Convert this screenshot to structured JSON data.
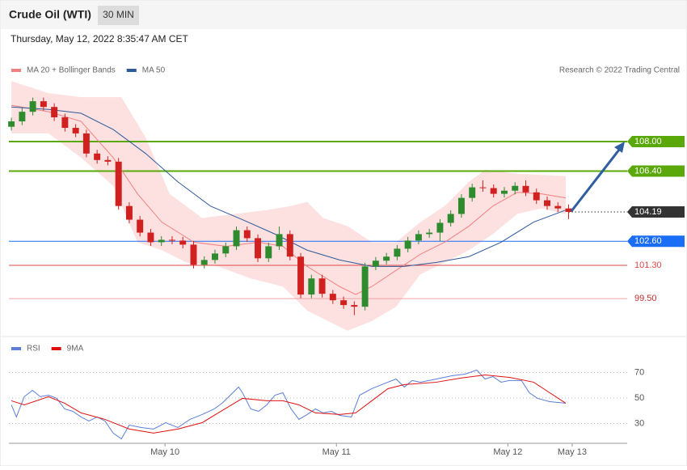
{
  "header": {
    "title": "Crude Oil (WTI)",
    "interval": "30 MIN",
    "timestamp": "Thursday, May 12, 2022 8:35:47 AM CET"
  },
  "chart_data": [
    {
      "type": "candlestick",
      "credit": "Research © 2022 Trading Central",
      "up_color": "#2e8b2e",
      "down_color": "#d02020",
      "xlim": [
        -0.7,
        172.4
      ],
      "ylim": [
        97.74,
        111.5
      ],
      "x": [
        0,
        3,
        6,
        9,
        12,
        15,
        18,
        21,
        24,
        27,
        30,
        33,
        36,
        39,
        42,
        45,
        48,
        51,
        54,
        57,
        60,
        63,
        66,
        69,
        72,
        75,
        78,
        81,
        84,
        87,
        90,
        93,
        96,
        99,
        102,
        105,
        108,
        111,
        114,
        117,
        120,
        123,
        126,
        129,
        132,
        135,
        138,
        141,
        144,
        147,
        150,
        153,
        156
      ],
      "open": [
        108.8,
        109.09,
        109.61,
        110.18,
        109.87,
        109.31,
        108.74,
        108.44,
        107.35,
        107.0,
        106.91,
        104.51,
        103.77,
        103.07,
        102.55,
        102.68,
        102.64,
        102.42,
        101.33,
        101.59,
        101.94,
        102.33,
        103.2,
        102.77,
        101.68,
        102.33,
        102.99,
        101.77,
        99.72,
        100.59,
        99.76,
        99.41,
        99.15,
        99.06,
        101.24,
        101.55,
        101.77,
        102.2,
        102.64,
        102.99,
        103.07,
        103.6,
        104.08,
        104.95,
        105.52,
        105.48,
        105.17,
        105.34,
        105.6,
        105.25,
        104.82,
        104.51,
        104.38
      ],
      "high": [
        109.29,
        109.81,
        110.38,
        110.38,
        110.07,
        109.51,
        108.94,
        108.64,
        107.55,
        107.2,
        107.11,
        104.71,
        103.97,
        103.27,
        102.88,
        102.88,
        102.84,
        102.62,
        101.79,
        102.14,
        102.53,
        103.4,
        103.4,
        102.97,
        102.53,
        103.4,
        103.19,
        101.97,
        100.79,
        100.79,
        99.96,
        99.61,
        99.35,
        101.44,
        101.75,
        101.97,
        102.4,
        102.84,
        103.19,
        103.27,
        103.8,
        104.28,
        105.15,
        105.72,
        105.9,
        105.68,
        105.54,
        105.8,
        105.9,
        105.45,
        105.02,
        104.71,
        104.59
      ],
      "low": [
        108.6,
        108.89,
        109.41,
        109.67,
        109.11,
        108.54,
        108.24,
        107.15,
        106.8,
        106.71,
        104.31,
        103.57,
        102.87,
        102.35,
        102.35,
        102.44,
        102.22,
        101.13,
        101.13,
        101.39,
        101.74,
        102.13,
        102.57,
        101.48,
        101.48,
        102.13,
        101.57,
        99.52,
        99.52,
        99.56,
        99.21,
        98.95,
        98.6,
        98.86,
        101.04,
        101.35,
        101.57,
        102.0,
        102.44,
        102.79,
        102.6,
        103.4,
        103.88,
        104.75,
        105.28,
        104.97,
        104.97,
        105.14,
        105.05,
        104.62,
        104.31,
        104.18,
        103.8
      ],
      "close": [
        109.09,
        109.61,
        110.18,
        109.87,
        109.31,
        108.74,
        108.44,
        107.35,
        107.0,
        106.91,
        104.51,
        103.77,
        103.07,
        102.55,
        102.68,
        102.64,
        102.42,
        101.33,
        101.59,
        101.94,
        102.33,
        103.2,
        102.77,
        101.68,
        102.33,
        102.99,
        101.77,
        99.72,
        100.59,
        99.76,
        99.41,
        99.15,
        99.06,
        101.24,
        101.55,
        101.77,
        102.2,
        102.64,
        102.99,
        103.07,
        103.6,
        104.08,
        104.95,
        105.52,
        105.48,
        105.17,
        105.34,
        105.6,
        105.25,
        104.82,
        104.51,
        104.38,
        104.19
      ],
      "series": [
        {
          "name": "MA 20 + Bollinger Bands",
          "color": "#f08080",
          "x": [
            0,
            10.4,
            19.5,
            28.5,
            35.3,
            42.1,
            51.1,
            60.2,
            69.2,
            76.0,
            82.8,
            91.9,
            96.4,
            100.9,
            107.7,
            114.5,
            121.3,
            128.1,
            134.8,
            141.6,
            148.4,
            155.2
          ],
          "values": [
            109.96,
            109.61,
            109.09,
            107.13,
            105.17,
            103.64,
            102.55,
            102.33,
            102.55,
            102.33,
            101.24,
            100.15,
            99.72,
            100.15,
            101.03,
            101.9,
            102.55,
            103.42,
            104.51,
            105.25,
            105.17,
            104.95
          ],
          "band_color": "#fde1e1",
          "upper": {
            "x": [
              0,
              10.4,
              19.5,
              30.8,
              37.6,
              44.3,
              53.4,
              62.4,
              71.5,
              78.3,
              82.8,
              87.3,
              94.1,
              100.9,
              107.7,
              114.5,
              121.3,
              128.1,
              132.6,
              141.6,
              155.2
            ],
            "values": [
              111.27,
              110.62,
              110.4,
              110.4,
              108.22,
              105.17,
              103.86,
              104.08,
              104.29,
              104.51,
              104.73,
              103.86,
              103.42,
              102.55,
              102.55,
              103.64,
              104.51,
              105.82,
              106.47,
              106.26,
              106.13
            ]
          },
          "lower": {
            "x": [
              0,
              10.4,
              19.5,
              28.5,
              35.3,
              42.1,
              48.9,
              57.9,
              67.0,
              76.0,
              82.8,
              89.6,
              94.1,
              100.9,
              107.7,
              114.5,
              121.3,
              128.1,
              134.8,
              141.6,
              148.4,
              155.2
            ],
            "values": [
              108.44,
              108.44,
              107.13,
              105.6,
              102.55,
              102.12,
              101.46,
              101.24,
              100.59,
              100.15,
              98.85,
              98.19,
              97.76,
              98.28,
              99.06,
              100.81,
              101.46,
              102.12,
              102.99,
              104.08,
              104.38,
              104.08
            ]
          }
        },
        {
          "name": "MA 50",
          "color": "#2e5a9a",
          "x": [
            0,
            10.4,
            19.5,
            28.5,
            37.6,
            46.6,
            55.7,
            64.7,
            73.8,
            82.8,
            91.9,
            100.9,
            110.0,
            119.0,
            128.1,
            137.1,
            146.2,
            155.2
          ],
          "values": [
            109.87,
            109.74,
            109.53,
            108.65,
            107.35,
            105.82,
            104.51,
            103.77,
            102.99,
            102.12,
            101.59,
            101.24,
            101.24,
            101.46,
            101.77,
            102.55,
            103.64,
            104.29
          ]
        }
      ],
      "levels": [
        {
          "value": 108,
          "label": "108.00",
          "color": "#5aa80a",
          "style": "box"
        },
        {
          "value": 106.4,
          "label": "106.40",
          "color": "#5aa80a",
          "style": "box"
        },
        {
          "value": 104.19,
          "label": "104.19",
          "color": "#333333",
          "style": "current"
        },
        {
          "value": 102.6,
          "label": "102.60",
          "color": "#1a6ef5",
          "style": "box"
        },
        {
          "value": 101.3,
          "label": "101.30",
          "color": "#e04848",
          "style": "text"
        },
        {
          "value": 99.5,
          "label": "99.50",
          "color": "#f4a4a4",
          "style": "text"
        }
      ]
    },
    {
      "type": "line",
      "xlim": [
        -0.7,
        172.4
      ],
      "ylim": [
        16,
        83
      ],
      "yticks": [
        70,
        50,
        30
      ],
      "xticks": [
        {
          "value": 43,
          "label": "May 10"
        },
        {
          "value": 91,
          "label": "May 11"
        },
        {
          "value": 139,
          "label": "May 12"
        },
        {
          "value": 157,
          "label": "May 13"
        }
      ],
      "series": [
        {
          "name": "RSI",
          "color": "#5b7fd6",
          "x": [
            0,
            1.4,
            3.6,
            5.9,
            8.1,
            10.4,
            12.7,
            14.9,
            17.2,
            19.5,
            21.7,
            24.0,
            26.2,
            28.5,
            30.8,
            33.0,
            36.4,
            39.8,
            43.2,
            46.6,
            50.0,
            53.4,
            56.8,
            59.0,
            61.3,
            63.6,
            64.7,
            67.0,
            69.2,
            71.5,
            73.8,
            76.0,
            78.3,
            80.5,
            82.8,
            85.1,
            87.3,
            89.6,
            91.9,
            95.2,
            97.5,
            100.9,
            105.4,
            107.7,
            110.0,
            112.2,
            114.5,
            119.0,
            123.5,
            127.0,
            130.3,
            132.6,
            134.8,
            137.1,
            139.4,
            142.8,
            145.0,
            147.3,
            150.7,
            155.2
          ],
          "values": [
            44.6,
            35.1,
            51.0,
            56.0,
            51.0,
            52.2,
            49.7,
            41.4,
            39.5,
            35.1,
            31.9,
            35.1,
            31.9,
            22.4,
            17.9,
            28.7,
            26.8,
            25.6,
            30.6,
            26.8,
            33.2,
            37.0,
            41.4,
            45.9,
            52.2,
            58.6,
            54.1,
            41.4,
            39.5,
            44.6,
            52.2,
            54.1,
            41.4,
            33.2,
            37.0,
            41.4,
            38.3,
            39.5,
            36.3,
            35.1,
            52.2,
            57.3,
            62.4,
            64.9,
            58.6,
            63.7,
            62.4,
            64.9,
            67.5,
            68.7,
            71.9,
            64.9,
            66.8,
            62.4,
            63.7,
            63.7,
            54.1,
            49.7,
            47.1,
            45.9
          ]
        },
        {
          "name": "9MA",
          "color": "#e01010",
          "x": [
            0,
            3.6,
            10.4,
            14.9,
            19.5,
            26.2,
            33.0,
            39.8,
            46.6,
            53.4,
            57.9,
            64.7,
            71.5,
            76.0,
            80.5,
            85.1,
            91.9,
            96.4,
            100.9,
            105.4,
            110.0,
            119.0,
            125.8,
            132.6,
            139.4,
            146.2,
            150.7,
            155.2
          ],
          "values": [
            47.8,
            44.6,
            51.0,
            45.9,
            38.3,
            33.2,
            25.6,
            22.4,
            25.6,
            30.6,
            38.3,
            49.7,
            47.8,
            47.8,
            44.6,
            38.3,
            37.0,
            38.3,
            47.8,
            57.3,
            60.5,
            62.4,
            65.6,
            68.1,
            66.2,
            62.4,
            54.1,
            45.9
          ]
        }
      ]
    }
  ]
}
